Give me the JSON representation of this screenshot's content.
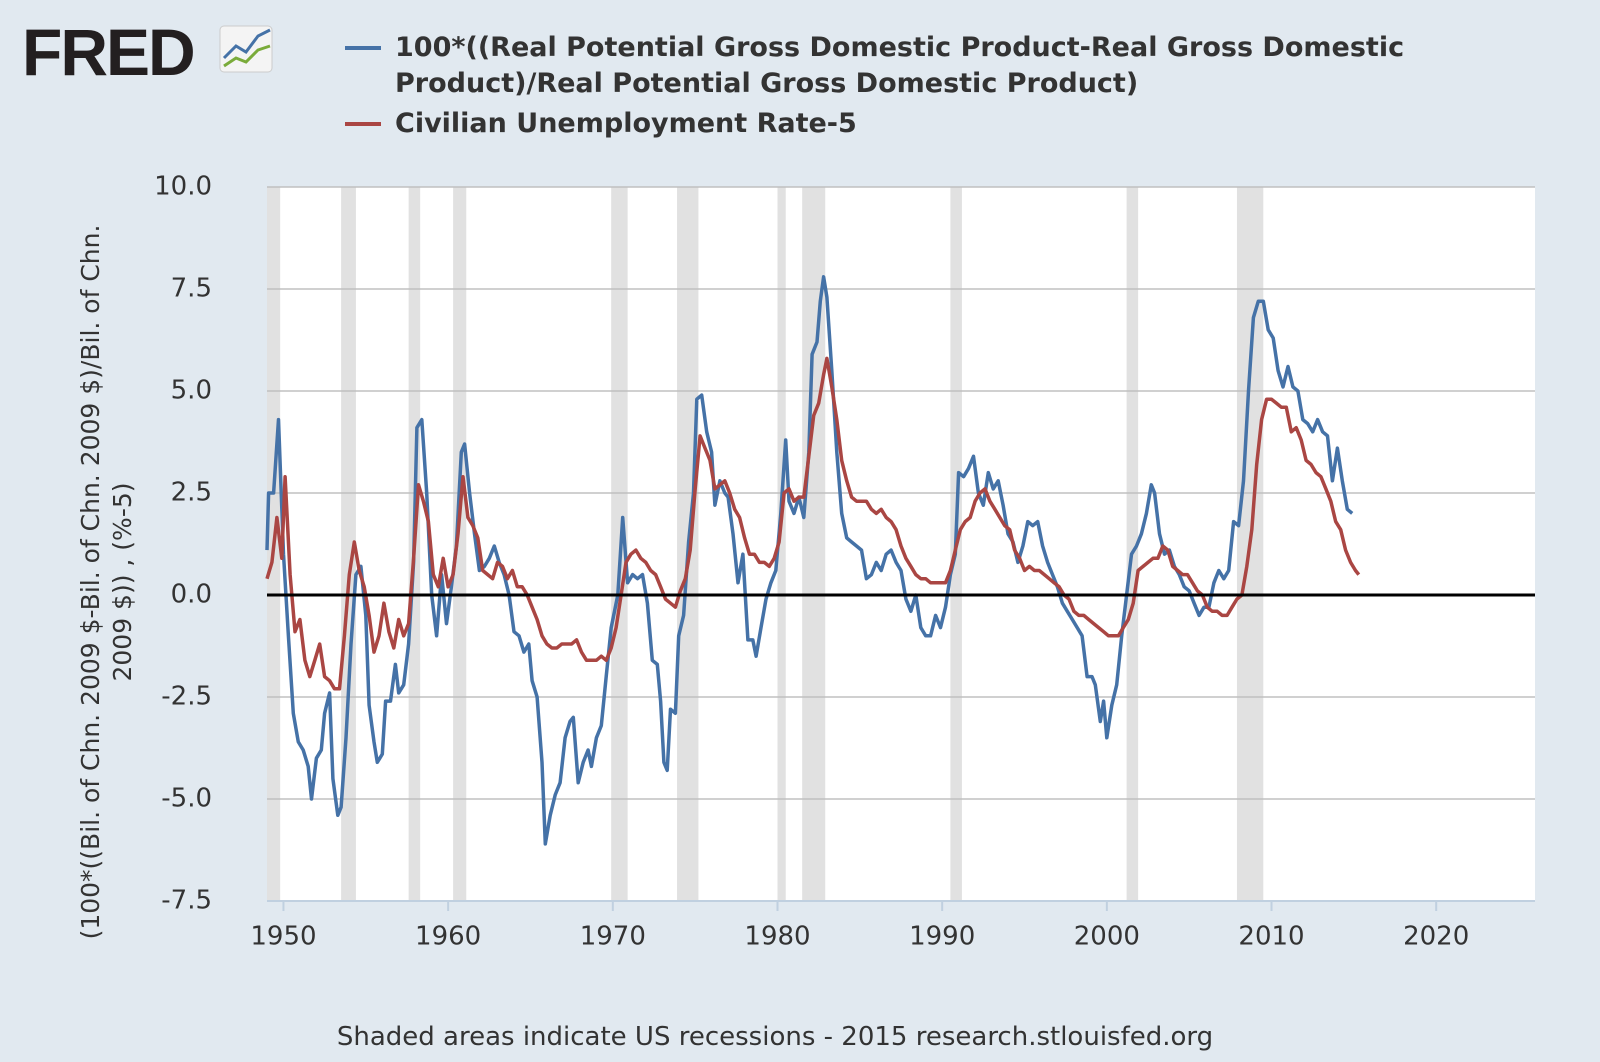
{
  "logo": "FRED",
  "chart_data": {
    "type": "line",
    "y_label": "(100*((Bil. of Chn. 2009 $-Bil. of Chn. 2009 $)/Bil. of Chn. 2009 $)) , (%-5)",
    "note": "Shaded areas indicate US recessions - 2015 research.stlouisfed.org",
    "xlim": [
      1949,
      2026
    ],
    "xticks": [
      1950,
      1960,
      1970,
      1980,
      1990,
      2000,
      2010,
      2020
    ],
    "ylim": [
      -7.5,
      10
    ],
    "yticks": [
      {
        "value": 10,
        "label": "10.0"
      },
      7.5,
      {
        "value": 5,
        "label": "5.0"
      },
      2.5,
      {
        "value": 0,
        "label": "0.0"
      },
      -2.5,
      {
        "value": -5,
        "label": "-5.0"
      },
      -7.5
    ],
    "grid": true,
    "recessions": [
      [
        1948.9,
        1949.8
      ],
      [
        1953.5,
        1954.4
      ],
      [
        1957.6,
        1958.3
      ],
      [
        1960.3,
        1961.1
      ],
      [
        1969.9,
        1970.9
      ],
      [
        1973.9,
        1975.2
      ],
      [
        1980.0,
        1980.5
      ],
      [
        1981.5,
        1982.9
      ],
      [
        1990.5,
        1991.2
      ],
      [
        2001.2,
        2001.9
      ],
      [
        2007.9,
        2009.5
      ]
    ],
    "series": [
      {
        "name": "100*((Real Potential Gross Domestic Product-Real Gross Domestic Product)/Real Potential Gross Domestic Product)",
        "color": "#4572a7",
        "x": [
          1949.0,
          1949.1,
          1949.4,
          1949.7,
          1950.0,
          1950.3,
          1950.6,
          1950.9,
          1951.2,
          1951.5,
          1951.7,
          1952.0,
          1952.3,
          1952.5,
          1952.8,
          1953.0,
          1953.3,
          1953.5,
          1953.8,
          1954.1,
          1954.4,
          1954.7,
          1955.0,
          1955.2,
          1955.5,
          1955.7,
          1956.0,
          1956.2,
          1956.5,
          1956.8,
          1957.0,
          1957.3,
          1957.6,
          1957.9,
          1958.1,
          1958.4,
          1958.7,
          1959.0,
          1959.3,
          1959.6,
          1959.9,
          1960.2,
          1960.5,
          1960.8,
          1961.0,
          1961.3,
          1961.6,
          1961.9,
          1962.2,
          1962.5,
          1962.8,
          1963.1,
          1963.4,
          1963.7,
          1964.0,
          1964.3,
          1964.6,
          1964.9,
          1965.1,
          1965.4,
          1965.7,
          1965.9,
          1966.2,
          1966.5,
          1966.8,
          1967.1,
          1967.4,
          1967.6,
          1967.9,
          1968.2,
          1968.5,
          1968.7,
          1969.0,
          1969.3,
          1969.6,
          1969.9,
          1970.3,
          1970.6,
          1970.9,
          1971.2,
          1971.5,
          1971.8,
          1972.1,
          1972.4,
          1972.7,
          1972.9,
          1973.1,
          1973.3,
          1973.5,
          1973.8,
          1974.0,
          1974.3,
          1974.6,
          1974.9,
          1975.1,
          1975.4,
          1975.7,
          1976.0,
          1976.2,
          1976.5,
          1976.8,
          1977.0,
          1977.3,
          1977.6,
          1977.9,
          1978.2,
          1978.5,
          1978.7,
          1979.0,
          1979.3,
          1979.6,
          1979.9,
          1980.2,
          1980.5,
          1980.7,
          1981.0,
          1981.3,
          1981.6,
          1981.9,
          1982.1,
          1982.4,
          1982.6,
          1982.8,
          1983.0,
          1983.3,
          1983.6,
          1983.9,
          1984.2,
          1984.5,
          1984.8,
          1985.1,
          1985.4,
          1985.7,
          1986.0,
          1986.3,
          1986.6,
          1986.9,
          1987.2,
          1987.5,
          1987.8,
          1988.1,
          1988.4,
          1988.7,
          1989.0,
          1989.3,
          1989.6,
          1989.9,
          1990.2,
          1990.5,
          1990.8,
          1991.0,
          1991.3,
          1991.6,
          1991.9,
          1992.2,
          1992.5,
          1992.8,
          1993.1,
          1993.4,
          1993.7,
          1994.0,
          1994.3,
          1994.6,
          1994.9,
          1995.2,
          1995.5,
          1995.8,
          1996.1,
          1996.4,
          1996.7,
          1997.0,
          1997.3,
          1997.6,
          1997.9,
          1998.2,
          1998.5,
          1998.8,
          1999.1,
          1999.3,
          1999.6,
          1999.8,
          2000.0,
          2000.3,
          2000.6,
          2000.9,
          2001.2,
          2001.5,
          2001.8,
          2002.1,
          2002.4,
          2002.7,
          2002.9,
          2003.2,
          2003.5,
          2003.8,
          2004.1,
          2004.4,
          2004.7,
          2005.0,
          2005.3,
          2005.6,
          2005.9,
          2006.2,
          2006.5,
          2006.8,
          2007.1,
          2007.4,
          2007.7,
          2008.0,
          2008.3,
          2008.6,
          2008.9,
          2009.2,
          2009.5,
          2009.8,
          2010.1,
          2010.4,
          2010.7,
          2011.0,
          2011.3,
          2011.6,
          2011.9,
          2012.2,
          2012.5,
          2012.8,
          2013.1,
          2013.4,
          2013.7,
          2014.0,
          2014.3,
          2014.6,
          2014.9
        ],
        "values": [
          1.1,
          2.5,
          2.5,
          4.3,
          1.0,
          -1.0,
          -2.9,
          -3.6,
          -3.8,
          -4.2,
          -5.0,
          -4.0,
          -3.8,
          -2.9,
          -2.4,
          -4.5,
          -5.4,
          -5.2,
          -3.5,
          -1.2,
          0.5,
          0.7,
          -0.5,
          -2.7,
          -3.6,
          -4.1,
          -3.9,
          -2.6,
          -2.6,
          -1.7,
          -2.4,
          -2.2,
          -1.2,
          0.8,
          4.1,
          4.3,
          2.5,
          0.0,
          -1.0,
          0.5,
          -0.7,
          0.2,
          1.2,
          3.5,
          3.7,
          2.5,
          1.5,
          0.6,
          0.7,
          0.9,
          1.2,
          0.8,
          0.5,
          0.0,
          -0.9,
          -1.0,
          -1.4,
          -1.2,
          -2.1,
          -2.5,
          -4.1,
          -6.1,
          -5.4,
          -4.9,
          -4.6,
          -3.5,
          -3.1,
          -3.0,
          -4.6,
          -4.1,
          -3.8,
          -4.2,
          -3.5,
          -3.2,
          -2.0,
          -0.8,
          0.0,
          1.9,
          0.3,
          0.5,
          0.4,
          0.5,
          -0.2,
          -1.6,
          -1.7,
          -2.6,
          -4.1,
          -4.3,
          -2.8,
          -2.9,
          -1.0,
          -0.5,
          1.3,
          2.5,
          4.8,
          4.9,
          4.0,
          3.5,
          2.2,
          2.8,
          2.5,
          2.4,
          1.5,
          0.3,
          1.0,
          -1.1,
          -1.1,
          -1.5,
          -0.8,
          -0.1,
          0.3,
          0.6,
          2.0,
          3.8,
          2.3,
          2.0,
          2.4,
          1.9,
          3.5,
          5.9,
          6.2,
          7.2,
          7.8,
          7.3,
          5.5,
          3.5,
          2.0,
          1.4,
          1.3,
          1.2,
          1.1,
          0.4,
          0.5,
          0.8,
          0.6,
          1.0,
          1.1,
          0.8,
          0.6,
          -0.1,
          -0.4,
          0.0,
          -0.8,
          -1.0,
          -1.0,
          -0.5,
          -0.8,
          -0.3,
          0.5,
          1.0,
          3.0,
          2.9,
          3.1,
          3.4,
          2.5,
          2.2,
          3.0,
          2.6,
          2.8,
          2.2,
          1.5,
          1.3,
          0.8,
          1.2,
          1.8,
          1.7,
          1.8,
          1.2,
          0.8,
          0.5,
          0.2,
          -0.2,
          -0.4,
          -0.6,
          -0.8,
          -1.0,
          -2.0,
          -2.0,
          -2.2,
          -3.1,
          -2.6,
          -3.5,
          -2.7,
          -2.2,
          -1.0,
          0.0,
          1.0,
          1.2,
          1.5,
          2.0,
          2.7,
          2.5,
          1.5,
          1.0,
          1.1,
          0.7,
          0.5,
          0.2,
          0.1,
          -0.2,
          -0.5,
          -0.3,
          -0.3,
          0.3,
          0.6,
          0.4,
          0.6,
          1.8,
          1.7,
          2.8,
          5.0,
          6.8,
          7.2,
          7.2,
          6.5,
          6.3,
          5.5,
          5.1,
          5.6,
          5.1,
          5.0,
          4.3,
          4.2,
          4.0,
          4.3,
          4.0,
          3.9,
          2.8,
          3.6,
          2.8,
          2.1,
          2.0
        ]
      },
      {
        "name": "Civilian Unemployment Rate-5",
        "color": "#aa4643",
        "x": [
          1949.0,
          1949.3,
          1949.6,
          1949.9,
          1950.1,
          1950.4,
          1950.7,
          1951.0,
          1951.3,
          1951.6,
          1951.9,
          1952.2,
          1952.5,
          1952.8,
          1953.1,
          1953.4,
          1953.7,
          1954.0,
          1954.3,
          1954.6,
          1954.9,
          1955.2,
          1955.5,
          1955.8,
          1956.1,
          1956.4,
          1956.7,
          1957.0,
          1957.3,
          1957.6,
          1957.9,
          1958.2,
          1958.5,
          1958.8,
          1959.1,
          1959.4,
          1959.7,
          1960.0,
          1960.3,
          1960.6,
          1960.9,
          1961.2,
          1961.5,
          1961.8,
          1962.1,
          1962.4,
          1962.7,
          1963.0,
          1963.3,
          1963.6,
          1963.9,
          1964.2,
          1964.5,
          1964.8,
          1965.1,
          1965.4,
          1965.7,
          1966.0,
          1966.3,
          1966.6,
          1966.9,
          1967.2,
          1967.5,
          1967.8,
          1968.1,
          1968.4,
          1968.7,
          1969.0,
          1969.3,
          1969.6,
          1969.9,
          1970.2,
          1970.5,
          1970.8,
          1971.1,
          1971.4,
          1971.7,
          1972.0,
          1972.3,
          1972.6,
          1972.9,
          1973.2,
          1973.5,
          1973.8,
          1974.1,
          1974.4,
          1974.7,
          1975.0,
          1975.3,
          1975.6,
          1975.9,
          1976.2,
          1976.5,
          1976.8,
          1977.1,
          1977.4,
          1977.7,
          1978.0,
          1978.3,
          1978.6,
          1978.9,
          1979.2,
          1979.5,
          1979.8,
          1980.1,
          1980.4,
          1980.7,
          1981.0,
          1981.3,
          1981.6,
          1981.9,
          1982.2,
          1982.5,
          1982.8,
          1983.0,
          1983.3,
          1983.6,
          1983.9,
          1984.2,
          1984.5,
          1984.8,
          1985.1,
          1985.4,
          1985.7,
          1986.0,
          1986.3,
          1986.6,
          1986.9,
          1987.2,
          1987.5,
          1987.8,
          1988.1,
          1988.4,
          1988.7,
          1989.0,
          1989.3,
          1989.6,
          1989.9,
          1990.2,
          1990.5,
          1990.8,
          1991.1,
          1991.4,
          1991.7,
          1992.0,
          1992.3,
          1992.6,
          1992.9,
          1993.2,
          1993.5,
          1993.8,
          1994.1,
          1994.4,
          1994.7,
          1995.0,
          1995.3,
          1995.6,
          1995.9,
          1996.2,
          1996.5,
          1996.8,
          1997.1,
          1997.4,
          1997.7,
          1998.0,
          1998.3,
          1998.6,
          1998.9,
          1999.2,
          1999.5,
          1999.8,
          2000.1,
          2000.4,
          2000.7,
          2001.0,
          2001.3,
          2001.6,
          2001.9,
          2002.2,
          2002.5,
          2002.8,
          2003.1,
          2003.4,
          2003.7,
          2004.0,
          2004.3,
          2004.6,
          2004.9,
          2005.2,
          2005.5,
          2005.8,
          2006.1,
          2006.4,
          2006.7,
          2007.0,
          2007.3,
          2007.6,
          2007.9,
          2008.2,
          2008.5,
          2008.8,
          2009.1,
          2009.4,
          2009.7,
          2010.0,
          2010.3,
          2010.6,
          2010.9,
          2011.2,
          2011.5,
          2011.8,
          2012.1,
          2012.4,
          2012.7,
          2013.0,
          2013.3,
          2013.6,
          2013.9,
          2014.2,
          2014.5,
          2014.8,
          2015.1,
          2015.3
        ],
        "values": [
          0.4,
          0.8,
          1.9,
          0.9,
          2.9,
          0.5,
          -0.9,
          -0.6,
          -1.6,
          -2.0,
          -1.6,
          -1.2,
          -2.0,
          -2.1,
          -2.3,
          -2.3,
          -1.0,
          0.5,
          1.3,
          0.6,
          0.2,
          -0.5,
          -1.4,
          -1.0,
          -0.2,
          -0.9,
          -1.3,
          -0.6,
          -1.0,
          -0.7,
          0.9,
          2.7,
          2.3,
          1.8,
          0.5,
          0.2,
          0.9,
          0.2,
          0.5,
          1.5,
          2.9,
          1.9,
          1.7,
          1.4,
          0.6,
          0.5,
          0.4,
          0.8,
          0.7,
          0.4,
          0.6,
          0.2,
          0.2,
          0.0,
          -0.3,
          -0.6,
          -1.0,
          -1.2,
          -1.3,
          -1.3,
          -1.2,
          -1.2,
          -1.2,
          -1.1,
          -1.4,
          -1.6,
          -1.6,
          -1.6,
          -1.5,
          -1.6,
          -1.3,
          -0.8,
          0.0,
          0.8,
          1.0,
          1.1,
          0.9,
          0.8,
          0.6,
          0.5,
          0.2,
          -0.1,
          -0.2,
          -0.3,
          0.1,
          0.4,
          1.1,
          2.6,
          3.9,
          3.6,
          3.3,
          2.6,
          2.7,
          2.8,
          2.5,
          2.1,
          1.9,
          1.4,
          1.0,
          1.0,
          0.8,
          0.8,
          0.7,
          0.9,
          1.3,
          2.5,
          2.6,
          2.3,
          2.4,
          2.4,
          3.4,
          4.4,
          4.7,
          5.4,
          5.8,
          5.1,
          4.3,
          3.3,
          2.8,
          2.4,
          2.3,
          2.3,
          2.3,
          2.1,
          2.0,
          2.1,
          1.9,
          1.8,
          1.6,
          1.2,
          0.9,
          0.7,
          0.5,
          0.4,
          0.4,
          0.3,
          0.3,
          0.3,
          0.3,
          0.6,
          1.1,
          1.6,
          1.8,
          1.9,
          2.3,
          2.5,
          2.6,
          2.3,
          2.1,
          1.9,
          1.7,
          1.6,
          1.1,
          0.9,
          0.6,
          0.7,
          0.6,
          0.6,
          0.5,
          0.4,
          0.3,
          0.2,
          0.0,
          -0.1,
          -0.4,
          -0.5,
          -0.5,
          -0.6,
          -0.7,
          -0.8,
          -0.9,
          -1.0,
          -1.0,
          -1.0,
          -0.8,
          -0.6,
          -0.2,
          0.6,
          0.7,
          0.8,
          0.9,
          0.9,
          1.2,
          1.1,
          0.7,
          0.6,
          0.5,
          0.5,
          0.3,
          0.1,
          0.0,
          -0.3,
          -0.4,
          -0.4,
          -0.5,
          -0.5,
          -0.3,
          -0.1,
          0.0,
          0.7,
          1.6,
          3.2,
          4.3,
          4.8,
          4.8,
          4.7,
          4.6,
          4.6,
          4.0,
          4.1,
          3.8,
          3.3,
          3.2,
          3.0,
          2.9,
          2.6,
          2.3,
          1.8,
          1.6,
          1.1,
          0.8,
          0.6,
          0.5
        ]
      }
    ]
  }
}
